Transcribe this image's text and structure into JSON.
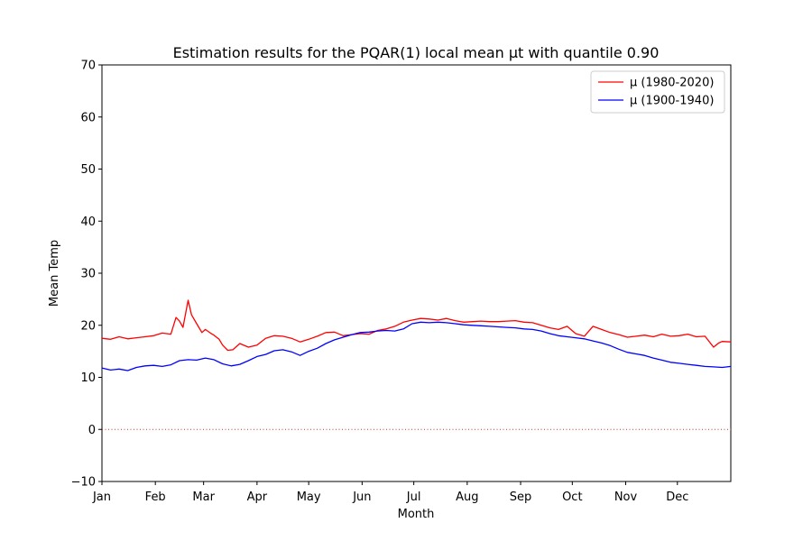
{
  "chart_data": {
    "type": "line",
    "title": "Estimation results for the PQAR(1) local mean μt with quantile 0.90",
    "xlabel": "Month",
    "ylabel": "Mean Temp",
    "xlim": [
      1,
      366
    ],
    "ylim": [
      -10,
      70
    ],
    "yticks": [
      -10,
      0,
      10,
      20,
      30,
      40,
      50,
      60,
      70
    ],
    "yticklabels": [
      "−10",
      "0",
      "10",
      "20",
      "30",
      "40",
      "50",
      "60",
      "70"
    ],
    "xticks": [
      {
        "day": 1,
        "label": "Jan"
      },
      {
        "day": 32,
        "label": "Feb"
      },
      {
        "day": 60,
        "label": "Mar"
      },
      {
        "day": 91,
        "label": "Apr"
      },
      {
        "day": 121,
        "label": "May"
      },
      {
        "day": 152,
        "label": "Jun"
      },
      {
        "day": 182,
        "label": "Jul"
      },
      {
        "day": 213,
        "label": "Aug"
      },
      {
        "day": 244,
        "label": "Sep"
      },
      {
        "day": 274,
        "label": "Oct"
      },
      {
        "day": 305,
        "label": "Nov"
      },
      {
        "day": 335,
        "label": "Dec"
      }
    ],
    "grid": false,
    "legend_position": "top-right",
    "reference_line": {
      "y": 0,
      "style": "dotted",
      "color": "#c0392b"
    },
    "series": [
      {
        "name": "μ (1980-2020)",
        "color": "#ff0000",
        "x": [
          1,
          6,
          11,
          16,
          21,
          26,
          31,
          36,
          41,
          44,
          46,
          48,
          51,
          53,
          56,
          59,
          61,
          64,
          66,
          69,
          71,
          74,
          77,
          81,
          86,
          91,
          96,
          101,
          106,
          111,
          116,
          121,
          126,
          131,
          136,
          141,
          146,
          151,
          156,
          161,
          166,
          171,
          176,
          181,
          186,
          191,
          196,
          201,
          206,
          211,
          216,
          221,
          226,
          231,
          236,
          241,
          246,
          251,
          256,
          261,
          266,
          271,
          276,
          281,
          286,
          291,
          296,
          301,
          306,
          311,
          316,
          321,
          326,
          331,
          336,
          341,
          346,
          351,
          356,
          359,
          361,
          366
        ],
        "y": [
          17.5,
          17.3,
          17.8,
          17.4,
          17.6,
          17.8,
          18.0,
          18.5,
          18.3,
          21.5,
          20.8,
          19.6,
          24.8,
          22.0,
          20.3,
          18.6,
          19.2,
          18.5,
          18.1,
          17.3,
          16.2,
          15.2,
          15.3,
          16.5,
          15.8,
          16.2,
          17.5,
          18.0,
          17.9,
          17.5,
          16.8,
          17.3,
          17.9,
          18.6,
          18.7,
          18.0,
          18.2,
          18.4,
          18.3,
          19.0,
          19.3,
          19.8,
          20.6,
          21.0,
          21.3,
          21.2,
          21.0,
          21.3,
          20.9,
          20.6,
          20.7,
          20.8,
          20.7,
          20.7,
          20.8,
          20.9,
          20.6,
          20.5,
          20.0,
          19.5,
          19.2,
          19.8,
          18.4,
          17.9,
          19.8,
          19.2,
          18.6,
          18.2,
          17.7,
          17.9,
          18.1,
          17.8,
          18.3,
          17.9,
          18.0,
          18.3,
          17.8,
          17.9,
          15.8,
          16.6,
          16.9,
          16.8
        ]
      },
      {
        "name": "μ (1900-1940)",
        "color": "#0000ff",
        "x": [
          1,
          6,
          11,
          16,
          21,
          26,
          31,
          36,
          41,
          46,
          51,
          56,
          61,
          66,
          71,
          76,
          81,
          86,
          91,
          96,
          101,
          106,
          111,
          116,
          121,
          126,
          131,
          136,
          141,
          146,
          151,
          156,
          161,
          166,
          171,
          176,
          181,
          186,
          191,
          196,
          201,
          206,
          211,
          216,
          221,
          226,
          231,
          236,
          241,
          246,
          251,
          256,
          261,
          266,
          271,
          276,
          281,
          286,
          291,
          296,
          301,
          306,
          311,
          316,
          321,
          326,
          331,
          336,
          341,
          346,
          351,
          356,
          361,
          366
        ],
        "y": [
          11.8,
          11.4,
          11.6,
          11.3,
          11.9,
          12.2,
          12.3,
          12.1,
          12.4,
          13.2,
          13.4,
          13.3,
          13.7,
          13.4,
          12.6,
          12.2,
          12.5,
          13.2,
          14.0,
          14.4,
          15.1,
          15.3,
          14.9,
          14.2,
          15.0,
          15.6,
          16.5,
          17.2,
          17.7,
          18.2,
          18.6,
          18.7,
          18.9,
          19.0,
          18.9,
          19.3,
          20.3,
          20.6,
          20.5,
          20.6,
          20.5,
          20.3,
          20.1,
          20.0,
          19.9,
          19.8,
          19.7,
          19.6,
          19.5,
          19.3,
          19.2,
          18.9,
          18.4,
          18.0,
          17.8,
          17.6,
          17.4,
          17.0,
          16.6,
          16.1,
          15.4,
          14.8,
          14.5,
          14.2,
          13.7,
          13.3,
          12.9,
          12.7,
          12.5,
          12.3,
          12.1,
          12.0,
          11.9,
          12.1
        ]
      }
    ]
  }
}
